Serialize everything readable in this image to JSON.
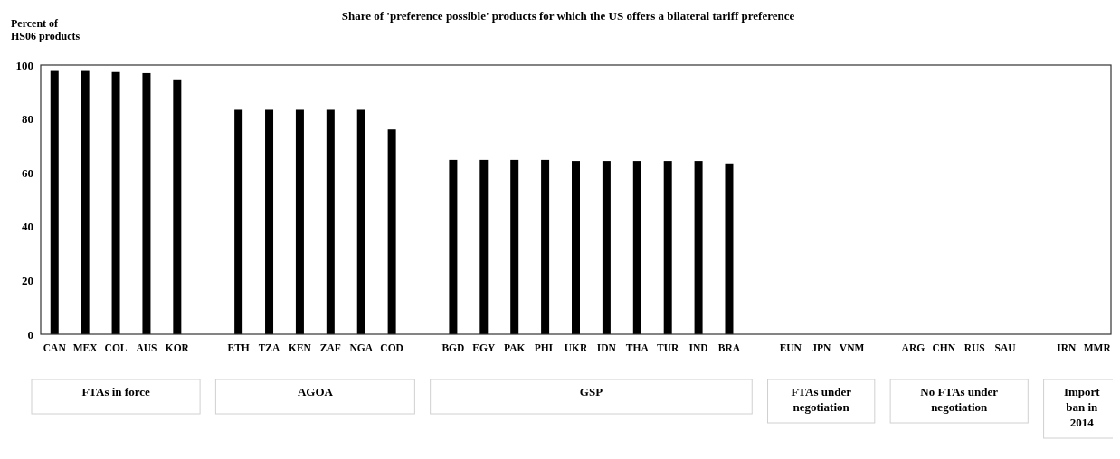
{
  "chart_data": {
    "type": "bar",
    "title": "Share of 'preference possible' products for which the US offers a bilateral tariff preference",
    "ylabel": "Percent of HS06 products",
    "categories": [
      "CAN",
      "MEX",
      "COL",
      "AUS",
      "KOR",
      null,
      "ETH",
      "TZA",
      "KEN",
      "ZAF",
      "NGA",
      "COD",
      null,
      "BGD",
      "EGY",
      "PAK",
      "PHL",
      "UKR",
      "IDN",
      "THA",
      "TUR",
      "IND",
      "BRA",
      null,
      "EUN",
      "JPN",
      "VNM",
      null,
      "ARG",
      "CHN",
      "RUS",
      "SAU",
      null,
      "IRN",
      "MMR"
    ],
    "values": [
      97.8,
      97.8,
      97.4,
      97.0,
      94.7,
      null,
      83.4,
      83.4,
      83.4,
      83.4,
      83.4,
      76.1,
      null,
      64.8,
      64.8,
      64.8,
      64.8,
      64.4,
      64.4,
      64.4,
      64.4,
      64.4,
      63.5,
      null,
      0,
      0,
      0,
      null,
      0,
      0,
      0,
      0,
      null,
      0,
      0
    ],
    "color": "#000000",
    "ylim": [
      0,
      100
    ],
    "yticks": [
      0,
      20,
      40,
      60,
      80,
      100
    ],
    "grid": false,
    "annotations": [
      "FTAs in force",
      "AGOA",
      "GSP",
      "FTAs under negotiation",
      "No FTAs under negotiation",
      "Import ban in 2014"
    ]
  }
}
